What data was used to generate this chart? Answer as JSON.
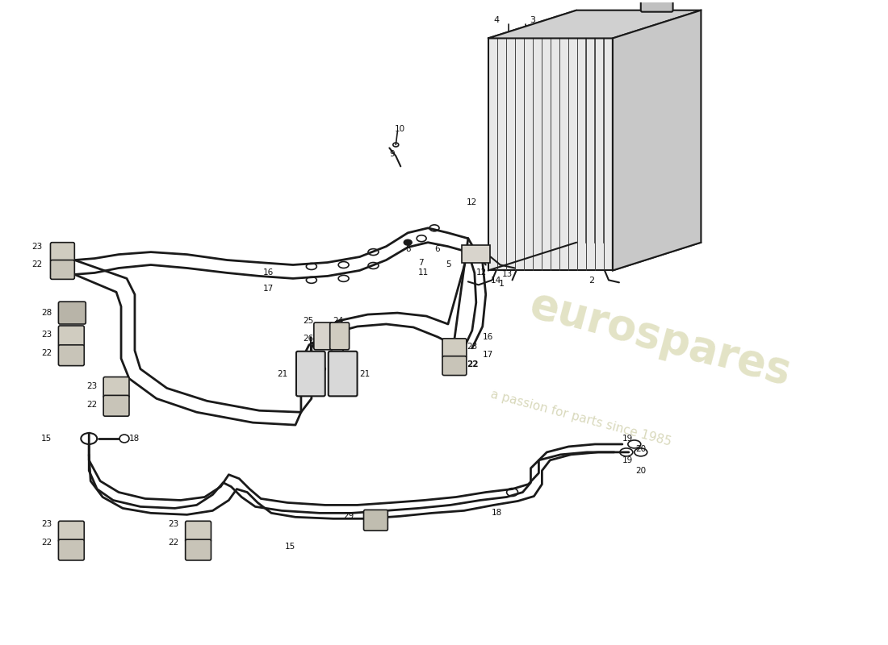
{
  "bg_color": "#ffffff",
  "line_color": "#1a1a1a",
  "watermark_text1": "eurospares",
  "watermark_text2": "a passion for parts since 1985",
  "watermark_color1": "#d0d0a0",
  "watermark_color2": "#c0c090"
}
